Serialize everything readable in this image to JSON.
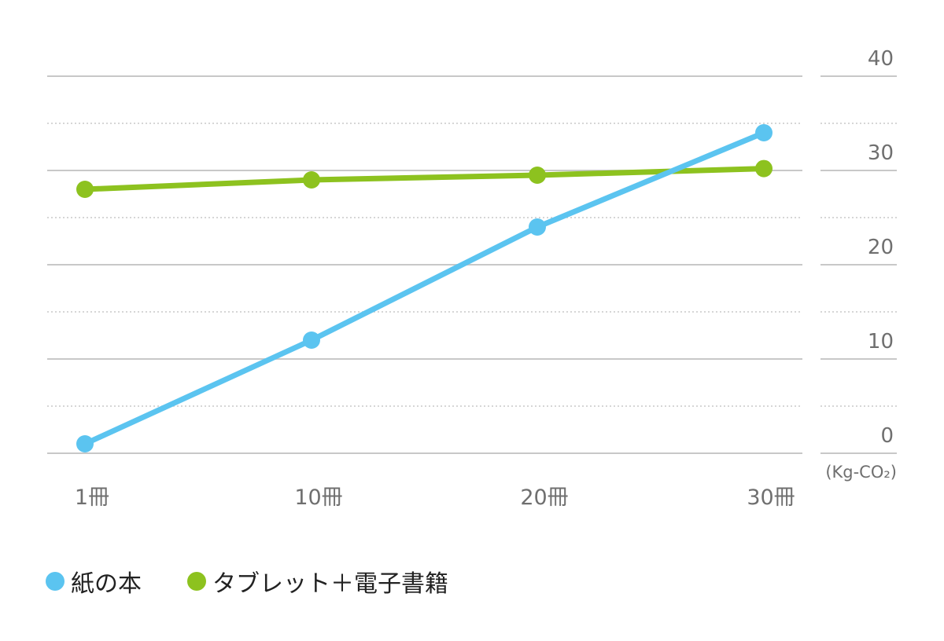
{
  "chart_data": {
    "type": "line",
    "categories": [
      "1冊",
      "10冊",
      "20冊",
      "30冊"
    ],
    "series": [
      {
        "name": "紙の本",
        "values": [
          1,
          12,
          24,
          34
        ],
        "color": "#5bc4f0"
      },
      {
        "name": "タブレット＋電子書籍",
        "values": [
          28,
          29,
          29.5,
          30.2
        ],
        "color": "#8dc21f"
      }
    ],
    "y_ticks": [
      0,
      10,
      20,
      30,
      40
    ],
    "ylim": [
      0,
      40
    ],
    "unit_label": "(Kg-CO₂)",
    "grid": true,
    "legend_position": "bottom-left",
    "axis_color": "#c8c8c8",
    "text_color": "#6f6f6f"
  }
}
